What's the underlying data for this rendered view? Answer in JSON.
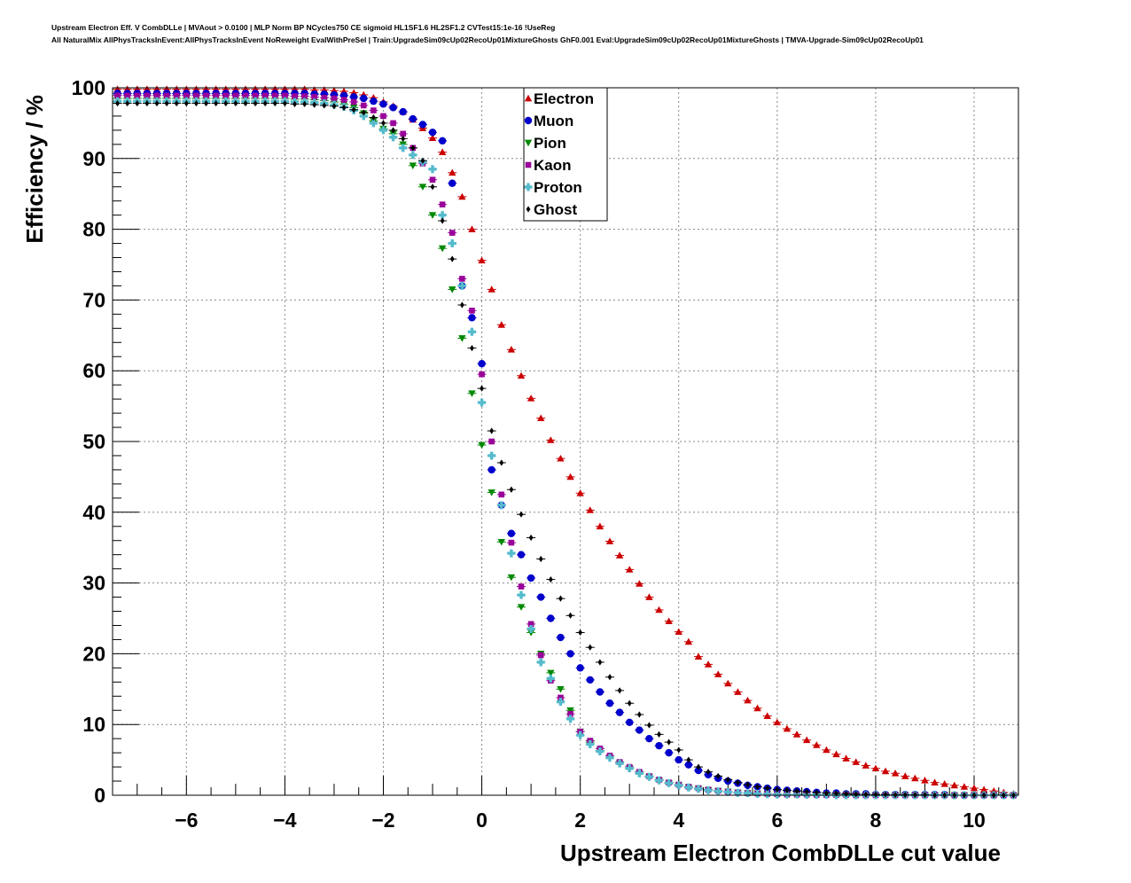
{
  "header": {
    "line1": "Upstream Electron Eff. V CombDLLe | MVAout > 0.0100 | MLP Norm BP NCycles750 CE sigmoid HL1SF1.6 HL2SF1.2 CVTest15:1e-16 !UseReg",
    "line2": "All NaturalMix AllPhysTracksInEvent:AllPhysTracksInEvent NoReweight EvalWithPreSel | Train:UpgradeSim09cUp02RecoUp01MixtureGhosts GhF0.001 Eval:UpgradeSim09cUp02RecoUp01MixtureGhosts | TMVA-Upgrade-Sim09cUp02RecoUp01"
  },
  "chart_data": {
    "type": "scatter",
    "xlabel": "Upstream Electron CombDLLe cut value",
    "ylabel": "Efficiency / %",
    "xlim": [
      -7.5,
      10.9
    ],
    "ylim": [
      0,
      100
    ],
    "x_ticks": [
      -6,
      -4,
      -2,
      0,
      2,
      4,
      6,
      8,
      10
    ],
    "x_tick_labels": [
      "−6",
      "−4",
      "−2",
      "0",
      "2",
      "4",
      "6",
      "8",
      "10"
    ],
    "y_ticks": [
      0,
      10,
      20,
      30,
      40,
      50,
      60,
      70,
      80,
      90,
      100
    ],
    "y_tick_labels": [
      "0",
      "10",
      "20",
      "30",
      "40",
      "50",
      "60",
      "70",
      "80",
      "90",
      "100"
    ],
    "grid": true,
    "legend_position": "top-center",
    "x": [
      -7.4,
      -7.2,
      -7.0,
      -6.8,
      -6.6,
      -6.4,
      -6.2,
      -6.0,
      -5.8,
      -5.6,
      -5.4,
      -5.2,
      -5.0,
      -4.8,
      -4.6,
      -4.4,
      -4.2,
      -4.0,
      -3.8,
      -3.6,
      -3.4,
      -3.2,
      -3.0,
      -2.8,
      -2.6,
      -2.4,
      -2.2,
      -2.0,
      -1.8,
      -1.6,
      -1.4,
      -1.2,
      -1.0,
      -0.8,
      -0.6,
      -0.4,
      -0.2,
      0.0,
      0.2,
      0.4,
      0.6,
      0.8,
      1.0,
      1.2,
      1.4,
      1.6,
      1.8,
      2.0,
      2.2,
      2.4,
      2.6,
      2.8,
      3.0,
      3.2,
      3.4,
      3.6,
      3.8,
      4.0,
      4.2,
      4.4,
      4.6,
      4.8,
      5.0,
      5.2,
      5.4,
      5.6,
      5.8,
      6.0,
      6.2,
      6.4,
      6.6,
      6.8,
      7.0,
      7.2,
      7.4,
      7.6,
      7.8,
      8.0,
      8.2,
      8.4,
      8.6,
      8.8,
      9.0,
      9.2,
      9.4,
      9.6,
      9.8,
      10.0,
      10.2,
      10.4,
      10.6,
      10.8
    ],
    "series": [
      {
        "name": "Electron",
        "color": "#cc0000",
        "marker": "triangle-up",
        "values": [
          99.8,
          99.8,
          99.8,
          99.8,
          99.8,
          99.8,
          99.8,
          99.8,
          99.8,
          99.8,
          99.8,
          99.8,
          99.8,
          99.8,
          99.8,
          99.8,
          99.8,
          99.8,
          99.8,
          99.8,
          99.7,
          99.7,
          99.6,
          99.5,
          99.3,
          99.0,
          98.6,
          98.0,
          97.4,
          96.6,
          95.5,
          94.3,
          92.9,
          90.9,
          88.0,
          84.6,
          80.0,
          75.6,
          71.5,
          66.5,
          63.0,
          59.3,
          56.1,
          53.3,
          50.2,
          47.6,
          45.0,
          42.7,
          40.3,
          38.0,
          35.9,
          33.9,
          31.9,
          29.9,
          28.0,
          26.2,
          24.6,
          23.1,
          21.7,
          19.6,
          18.5,
          17.1,
          15.8,
          14.6,
          13.4,
          12.3,
          11.2,
          10.3,
          9.4,
          8.6,
          7.8,
          7.1,
          6.4,
          5.8,
          5.2,
          4.7,
          4.2,
          3.8,
          3.4,
          3.1,
          2.7,
          2.4,
          2.1,
          1.8,
          1.6,
          1.4,
          1.2,
          1.0,
          0.8,
          0.6,
          0.4,
          0.2
        ]
      },
      {
        "name": "Muon",
        "color": "#0000cc",
        "marker": "circle",
        "values": [
          99.2,
          99.2,
          99.2,
          99.2,
          99.2,
          99.2,
          99.2,
          99.2,
          99.2,
          99.2,
          99.2,
          99.2,
          99.2,
          99.2,
          99.2,
          99.2,
          99.2,
          99.2,
          99.2,
          99.2,
          99.1,
          99.1,
          99.0,
          98.9,
          98.7,
          98.5,
          98.1,
          97.7,
          97.2,
          96.6,
          95.6,
          94.8,
          93.7,
          92.5,
          86.5,
          72.0,
          67.5,
          61.0,
          46.0,
          41.0,
          37.0,
          34.0,
          30.7,
          28.0,
          25.0,
          22.3,
          20.0,
          18.0,
          16.3,
          14.6,
          13.0,
          11.7,
          10.3,
          9.2,
          8.0,
          7.0,
          6.0,
          5.0,
          4.3,
          3.5,
          2.9,
          2.4,
          2.0,
          1.7,
          1.4,
          1.2,
          1.0,
          0.8,
          0.7,
          0.6,
          0.5,
          0.4,
          0.3,
          0.3,
          0.2,
          0.2,
          0.2,
          0.1,
          0.1,
          0.1,
          0.1,
          0.1,
          0.1,
          0.1,
          0.1,
          0.0,
          0.0,
          0.0,
          0.0,
          0.0,
          0.0,
          0.0
        ]
      },
      {
        "name": "Pion",
        "color": "#008800",
        "marker": "triangle-down",
        "values": [
          98.5,
          98.5,
          98.5,
          98.5,
          98.5,
          98.5,
          98.5,
          98.5,
          98.5,
          98.5,
          98.5,
          98.5,
          98.5,
          98.5,
          98.5,
          98.5,
          98.5,
          98.5,
          98.4,
          98.4,
          98.3,
          98.2,
          98.0,
          97.7,
          97.2,
          96.4,
          95.3,
          94.2,
          93.5,
          92.0,
          89.0,
          86.0,
          82.0,
          77.3,
          71.5,
          64.6,
          56.8,
          49.5,
          42.8,
          35.8,
          30.8,
          26.6,
          23.0,
          20.0,
          17.3,
          15.0,
          12.0,
          9.0,
          7.5,
          6.3,
          5.3,
          4.5,
          3.8,
          3.1,
          2.6,
          2.1,
          1.7,
          1.4,
          1.1,
          0.9,
          0.7,
          0.6,
          0.5,
          0.4,
          0.3,
          0.25,
          0.2,
          0.15,
          0.1,
          0.1,
          0.1,
          0.05,
          0.05,
          0.05,
          0.05,
          0.0,
          0.0,
          0.0,
          0.0,
          0.0,
          0.0,
          0.0,
          0.0,
          0.0,
          0.0,
          0.0,
          0.0,
          0.0,
          0.0,
          0.0,
          0.0,
          0.0
        ]
      },
      {
        "name": "Kaon",
        "color": "#990099",
        "marker": "square",
        "values": [
          98.9,
          98.9,
          98.9,
          98.9,
          98.9,
          98.9,
          98.9,
          98.9,
          98.9,
          98.9,
          98.9,
          98.9,
          98.9,
          98.9,
          98.9,
          98.9,
          98.9,
          98.9,
          98.8,
          98.8,
          98.7,
          98.6,
          98.5,
          98.3,
          98.0,
          97.5,
          96.8,
          96.0,
          95.0,
          93.5,
          91.5,
          89.3,
          87.0,
          83.5,
          79.5,
          73.0,
          68.5,
          59.5,
          50.0,
          42.5,
          35.7,
          29.5,
          24.2,
          19.8,
          16.2,
          13.8,
          11.5,
          9.0,
          7.7,
          6.6,
          5.6,
          4.7,
          4.0,
          3.3,
          2.7,
          2.2,
          1.8,
          1.5,
          1.2,
          1.0,
          0.8,
          0.65,
          0.5,
          0.4,
          0.3,
          0.25,
          0.2,
          0.15,
          0.1,
          0.1,
          0.1,
          0.05,
          0.05,
          0.05,
          0.05,
          0.0,
          0.0,
          0.0,
          0.0,
          0.0,
          0.0,
          0.0,
          0.0,
          0.0,
          0.0,
          0.0,
          0.0,
          0.0,
          0.0,
          0.0,
          0.0,
          0.0
        ]
      },
      {
        "name": "Proton",
        "color": "#55bbcc",
        "marker": "cross",
        "values": [
          98.1,
          98.1,
          98.1,
          98.1,
          98.1,
          98.1,
          98.1,
          98.1,
          98.1,
          98.1,
          98.1,
          98.1,
          98.1,
          98.1,
          98.1,
          98.1,
          98.1,
          98.1,
          98.0,
          98.0,
          97.9,
          97.8,
          97.6,
          97.3,
          96.8,
          96.0,
          95.0,
          94.0,
          93.0,
          91.5,
          90.5,
          89.5,
          88.5,
          82.0,
          78.0,
          72.0,
          65.5,
          55.5,
          48.0,
          41.0,
          34.2,
          28.3,
          23.5,
          18.8,
          16.5,
          13.2,
          10.8,
          8.5,
          7.2,
          6.2,
          5.3,
          4.5,
          3.8,
          3.1,
          2.6,
          2.1,
          1.7,
          1.4,
          1.1,
          0.9,
          0.7,
          0.55,
          0.45,
          0.35,
          0.3,
          0.2,
          0.15,
          0.1,
          0.1,
          0.1,
          0.05,
          0.05,
          0.05,
          0.0,
          0.0,
          0.0,
          0.0,
          0.0,
          0.0,
          0.0,
          0.0,
          0.0,
          0.0,
          0.0,
          0.0,
          0.0,
          0.0,
          0.0,
          0.0,
          0.0,
          0.0,
          0.0
        ]
      },
      {
        "name": "Ghost",
        "color": "#000000",
        "marker": "diamond",
        "values": [
          97.8,
          97.8,
          97.8,
          97.8,
          97.8,
          97.8,
          97.8,
          97.8,
          97.8,
          97.8,
          97.8,
          97.8,
          97.8,
          97.8,
          97.8,
          97.8,
          97.8,
          97.8,
          97.7,
          97.7,
          97.6,
          97.5,
          97.4,
          97.2,
          96.9,
          96.5,
          95.8,
          95.0,
          94.0,
          92.8,
          91.5,
          89.7,
          86.0,
          81.2,
          75.8,
          69.3,
          63.2,
          57.5,
          51.5,
          47.0,
          43.2,
          39.7,
          36.4,
          33.4,
          30.5,
          27.8,
          25.4,
          23.0,
          20.9,
          18.8,
          16.7,
          14.8,
          13.0,
          11.4,
          9.9,
          8.6,
          7.5,
          6.4,
          5.0,
          4.0,
          3.3,
          2.7,
          2.2,
          1.8,
          1.5,
          1.2,
          1.0,
          0.8,
          0.7,
          0.6,
          0.5,
          0.4,
          0.3,
          0.25,
          0.2,
          0.15,
          0.1,
          0.1,
          0.1,
          0.05,
          0.05,
          0.05,
          0.05,
          0.0,
          0.0,
          0.0,
          0.0,
          0.0,
          0.0,
          0.0,
          0.0,
          0.0
        ]
      }
    ]
  }
}
